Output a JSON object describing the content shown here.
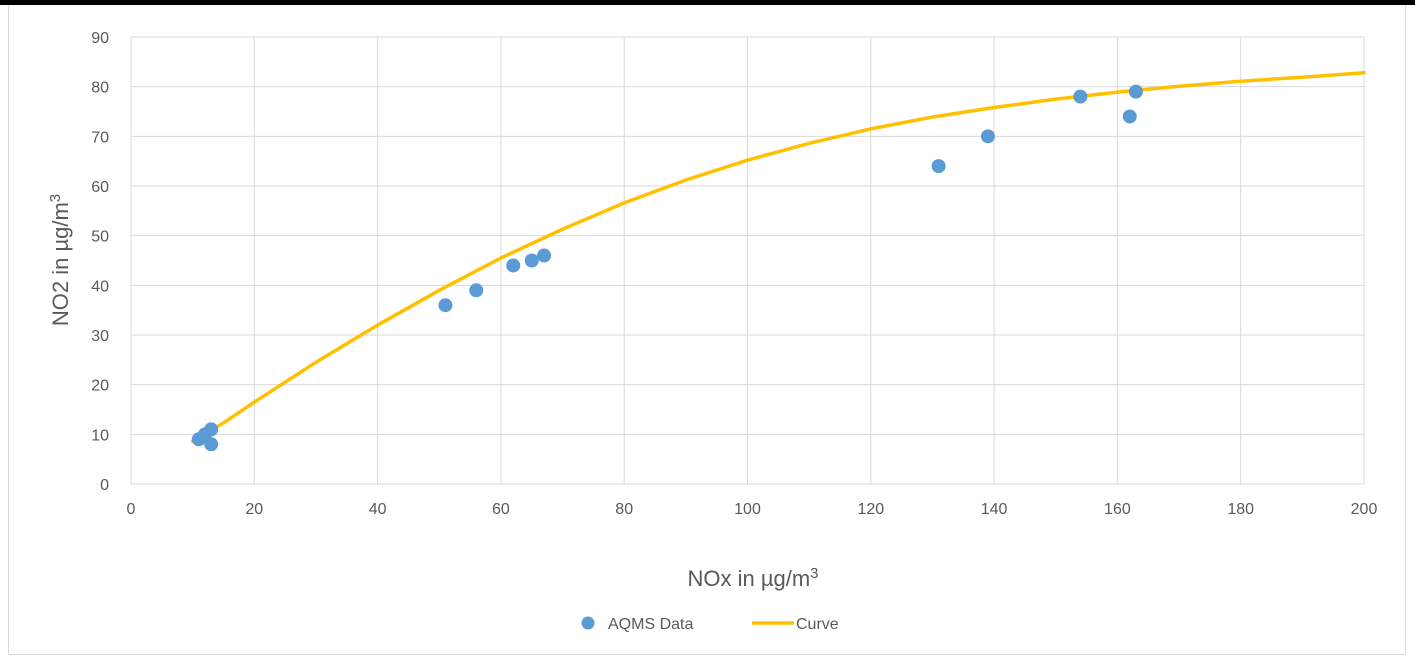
{
  "chart_data": {
    "type": "scatter",
    "title": "",
    "xlabel": "NOx in µg/m",
    "xlabel_sup": "3",
    "ylabel": "NO2 in µg/m",
    "ylabel_sup": "3",
    "xlim": [
      0,
      200
    ],
    "ylim": [
      0,
      90
    ],
    "x_ticks": [
      0,
      20,
      40,
      60,
      80,
      100,
      120,
      140,
      160,
      180,
      200
    ],
    "y_ticks": [
      0,
      10,
      20,
      30,
      40,
      50,
      60,
      70,
      80,
      90
    ],
    "grid": true,
    "legend_position": "bottom",
    "series": [
      {
        "name": "AQMS Data",
        "kind": "scatter",
        "color": "#5b9bd5",
        "points": [
          [
            11,
            9
          ],
          [
            12,
            10
          ],
          [
            13,
            11
          ],
          [
            13,
            8
          ],
          [
            51,
            36
          ],
          [
            56,
            39
          ],
          [
            62,
            44
          ],
          [
            65,
            45
          ],
          [
            67,
            46
          ],
          [
            131,
            64
          ],
          [
            139,
            70
          ],
          [
            154,
            78
          ],
          [
            162,
            74
          ],
          [
            163,
            79
          ]
        ]
      },
      {
        "name": "Curve",
        "kind": "line",
        "color": "#ffc000",
        "points": [
          [
            10,
            8.6
          ],
          [
            15,
            12.3
          ],
          [
            20,
            16.5
          ],
          [
            30,
            24.5
          ],
          [
            40,
            32
          ],
          [
            50,
            39
          ],
          [
            60,
            45.5
          ],
          [
            70,
            51.3
          ],
          [
            80,
            56.6
          ],
          [
            90,
            61.2
          ],
          [
            100,
            65.2
          ],
          [
            110,
            68.6
          ],
          [
            120,
            71.5
          ],
          [
            130,
            73.9
          ],
          [
            140,
            75.8
          ],
          [
            150,
            77.5
          ],
          [
            160,
            78.9
          ],
          [
            170,
            80.1
          ],
          [
            180,
            81.1
          ],
          [
            190,
            81.9
          ],
          [
            200,
            82.8
          ]
        ]
      }
    ]
  }
}
